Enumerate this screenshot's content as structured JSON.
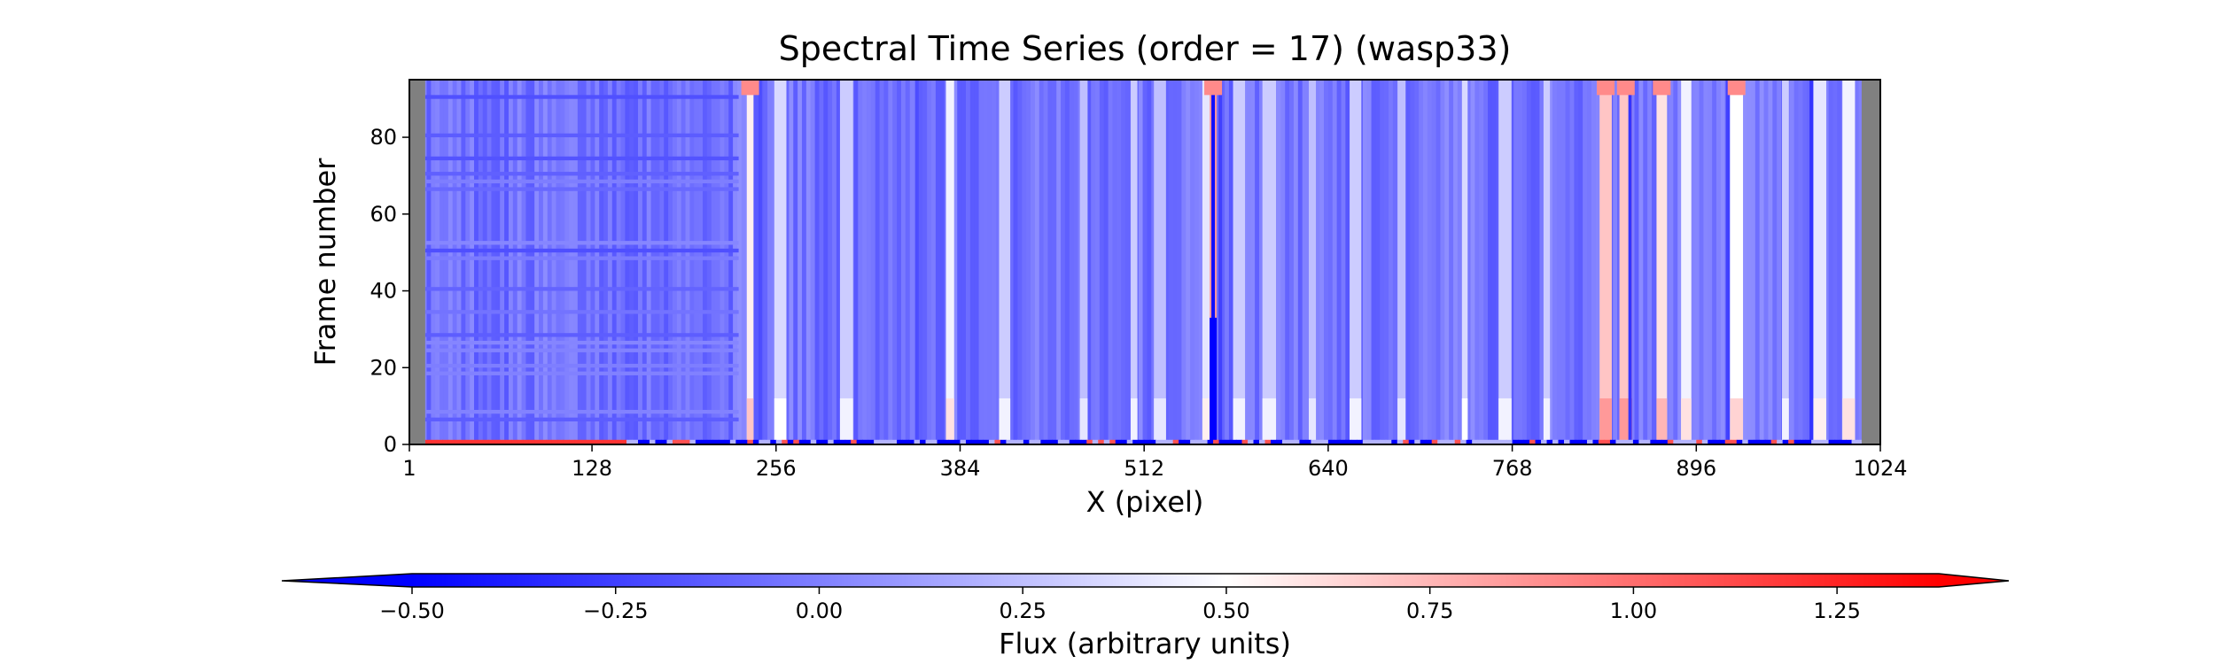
{
  "chart_data": [
    {
      "type": "heatmap",
      "title": "Spectral Time Series (order = 17) (wasp33)",
      "xlabel": "X (pixel)",
      "ylabel": "Frame number",
      "xlim": [
        1,
        1024
      ],
      "ylim": [
        0,
        95
      ],
      "xticks": [
        "1",
        "128",
        "256",
        "384",
        "512",
        "640",
        "768",
        "896",
        "1024"
      ],
      "xtick_values": [
        1,
        128,
        256,
        384,
        512,
        640,
        768,
        896,
        1024
      ],
      "yticks": [
        "0",
        "20",
        "40",
        "60",
        "80"
      ],
      "ytick_values": [
        0,
        20,
        40,
        60,
        80
      ],
      "grid": false,
      "masked_pixel_ranges": [
        [
          1,
          12
        ],
        [
          1011,
          1024
        ]
      ],
      "masked_color": "#808080",
      "baseline_flux": -0.05,
      "bright_columns": [
        {
          "x": 238,
          "flux": 0.55
        },
        {
          "x": 259,
          "flux": 0.35
        },
        {
          "x": 305,
          "flux": 0.3
        },
        {
          "x": 377,
          "flux": 0.45
        },
        {
          "x": 415,
          "flux": 0.3
        },
        {
          "x": 470,
          "flux": 0.25
        },
        {
          "x": 505,
          "flux": 0.3
        },
        {
          "x": 523,
          "flux": 0.25
        },
        {
          "x": 557,
          "flux": 0.4
        },
        {
          "x": 560,
          "flux": 0.85
        },
        {
          "x": 578,
          "flux": 0.3
        },
        {
          "x": 599,
          "flux": 0.3
        },
        {
          "x": 629,
          "flux": 0.25
        },
        {
          "x": 659,
          "flux": 0.3
        },
        {
          "x": 691,
          "flux": 0.25
        },
        {
          "x": 735,
          "flux": 0.35
        },
        {
          "x": 763,
          "flux": 0.3
        },
        {
          "x": 792,
          "flux": 0.3
        },
        {
          "x": 833,
          "flux": 0.7
        },
        {
          "x": 847,
          "flux": 0.7
        },
        {
          "x": 872,
          "flux": 0.6
        },
        {
          "x": 889,
          "flux": 0.45
        },
        {
          "x": 924,
          "flux": 0.5
        },
        {
          "x": 958,
          "flux": 0.3
        },
        {
          "x": 982,
          "flux": 0.4
        },
        {
          "x": 1002,
          "flux": 0.45
        }
      ],
      "dark_columns": [
        {
          "x": 245,
          "flux": -0.2
        },
        {
          "x": 354,
          "flux": -0.2
        },
        {
          "x": 560,
          "flux": -0.45
        },
        {
          "x": 565,
          "flux": -0.25
        },
        {
          "x": 850,
          "flux": -0.3
        },
        {
          "x": 918,
          "flux": -0.25
        },
        {
          "x": 976,
          "flux": -0.3
        }
      ],
      "frame0_flux_row": "low frame (0–1) red from x≈1–150, mixed blue/red elsewhere",
      "top_frames_flux": 0.9
    },
    {
      "type": "colorbar",
      "label": "Flux (arbitrary units)",
      "vmin": -0.5,
      "vmax": 1.375,
      "center": 0.5,
      "extend": "both",
      "colormap": "bwr",
      "colors": {
        "low": "#0000ff",
        "mid": "#ffffff",
        "high": "#ff0000"
      },
      "ticks": [
        "−0.50",
        "−0.25",
        "0.00",
        "0.25",
        "0.50",
        "0.75",
        "1.00",
        "1.25"
      ],
      "tick_values": [
        -0.5,
        -0.25,
        0.0,
        0.25,
        0.5,
        0.75,
        1.0,
        1.25
      ]
    }
  ]
}
